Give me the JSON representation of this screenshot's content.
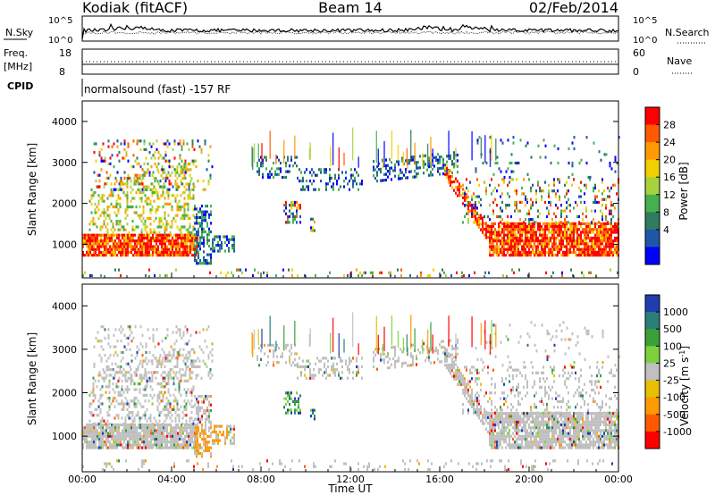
{
  "header": {
    "station": "Kodiak (fitACF)",
    "beam": "Beam 14",
    "date": "02/Feb/2014"
  },
  "noise_panel": {
    "left_label": "N.Sky",
    "right_label": "N.Search",
    "left_ticks": [
      "10^5",
      "10^0"
    ],
    "right_ticks": [
      "10^5",
      "10^0"
    ]
  },
  "freq_panel": {
    "left_label_1": "Freq.",
    "left_label_2": "[MHz]",
    "left_ticks": [
      "18",
      "8"
    ],
    "right_label": "Nave",
    "right_ticks": [
      "60",
      "0"
    ]
  },
  "cpid_panel": {
    "label": "CPID",
    "value": "normalsound (fast) -157 RF"
  },
  "chart_data": [
    {
      "type": "heatmap",
      "title": "Power",
      "ylabel": "Slant Range [km]",
      "ylim": [
        180,
        4500
      ],
      "xlim": [
        "00:00",
        "24:00"
      ],
      "yticks": [
        1000,
        2000,
        3000,
        4000
      ],
      "colorbar": {
        "label": "Power [dB]",
        "ticks": [
          "28",
          "24",
          "20",
          "16",
          "12",
          "8",
          "4"
        ],
        "colors": [
          "#ff0000",
          "#ff5a00",
          "#ff9a00",
          "#f2d000",
          "#a8d23c",
          "#45b04e",
          "#2f7d5e",
          "#1f57a8",
          "#0000ff"
        ]
      }
    },
    {
      "type": "heatmap",
      "title": "Velocity",
      "ylabel": "Slant Range [km]",
      "ylim": [
        180,
        4500
      ],
      "xlim": [
        "00:00",
        "24:00"
      ],
      "yticks": [
        1000,
        2000,
        3000,
        4000
      ],
      "colorbar": {
        "label": "Velocity [m s-1]",
        "ticks": [
          "1000",
          "500",
          "100",
          "25",
          "-25",
          "-100",
          "-500",
          "-1000"
        ],
        "colors": [
          "#1f3fb0",
          "#2a7f7a",
          "#3aa03a",
          "#7cd23c",
          "#c0c0c0",
          "#e8c000",
          "#ff9a00",
          "#ff5a00",
          "#ff0000"
        ]
      }
    }
  ],
  "x_axis": {
    "ticks": [
      "00:00",
      "04:00",
      "08:00",
      "12:00",
      "16:00",
      "20:00",
      "00:00"
    ],
    "label": "Time UT"
  }
}
